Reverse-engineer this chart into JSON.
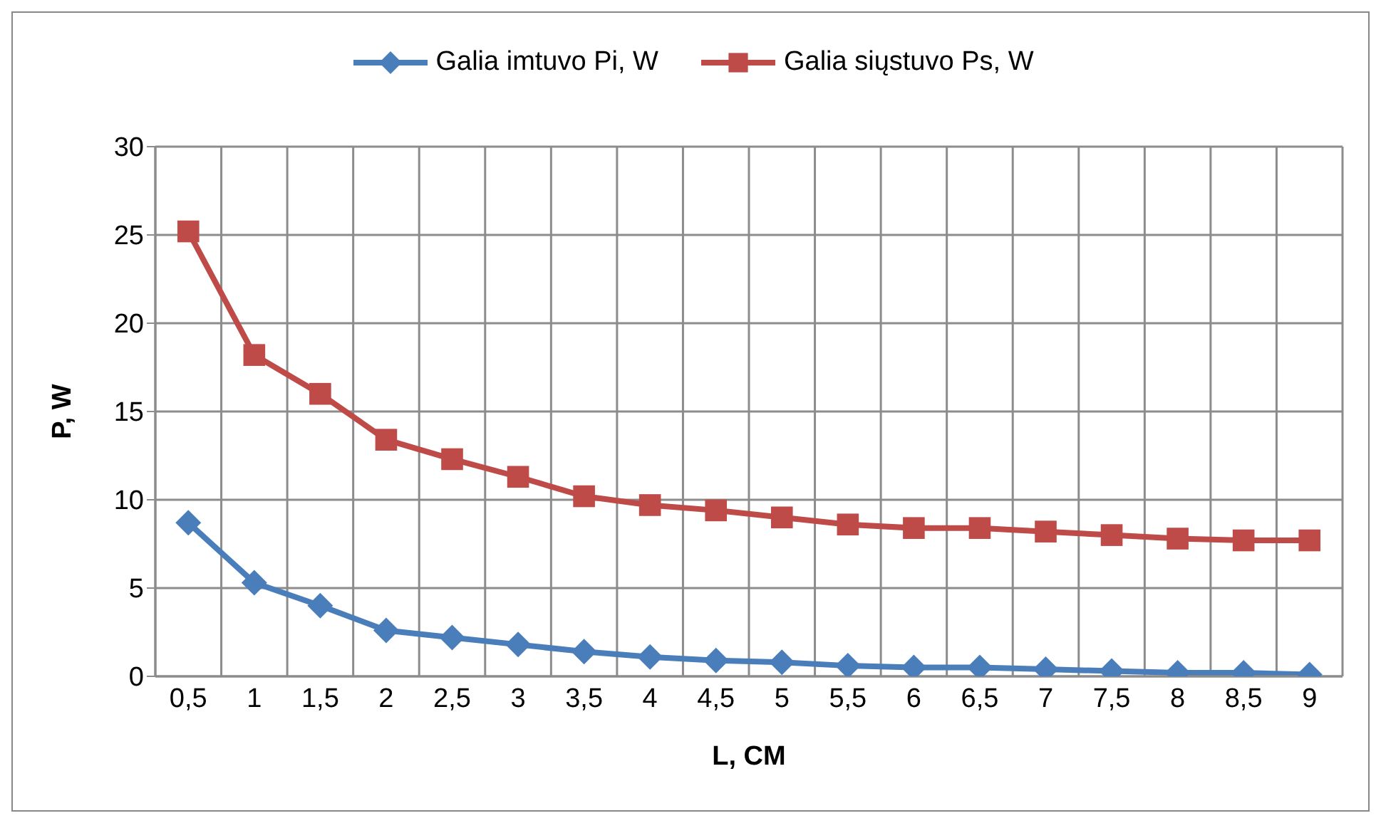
{
  "chart_data": {
    "type": "line",
    "xlabel": "L, CM",
    "ylabel": "P, W",
    "categories": [
      "0,5",
      "1",
      "1,5",
      "2",
      "2,5",
      "3",
      "3,5",
      "4",
      "4,5",
      "5",
      "5,5",
      "6",
      "6,5",
      "7",
      "7,5",
      "8",
      "8,5",
      "9"
    ],
    "series": [
      {
        "name": "Galia imtuvo Pi, W",
        "color": "#4a7ebb",
        "marker": "diamond",
        "values": [
          8.7,
          5.3,
          4.0,
          2.6,
          2.2,
          1.8,
          1.4,
          1.1,
          0.9,
          0.8,
          0.6,
          0.5,
          0.5,
          0.4,
          0.3,
          0.2,
          0.2,
          0.1
        ]
      },
      {
        "name": "Galia siųstuvo Ps, W",
        "color": "#be4b48",
        "marker": "square",
        "values": [
          25.2,
          18.2,
          16.0,
          13.4,
          12.3,
          11.3,
          10.2,
          9.7,
          9.4,
          9.0,
          8.6,
          8.4,
          8.4,
          8.2,
          8.0,
          7.8,
          7.7,
          7.7
        ]
      }
    ],
    "ylim": [
      0,
      30
    ],
    "yticks": [
      0,
      5,
      10,
      15,
      20,
      25,
      30
    ],
    "grid": true,
    "legend": "top",
    "line_style": "solid"
  }
}
